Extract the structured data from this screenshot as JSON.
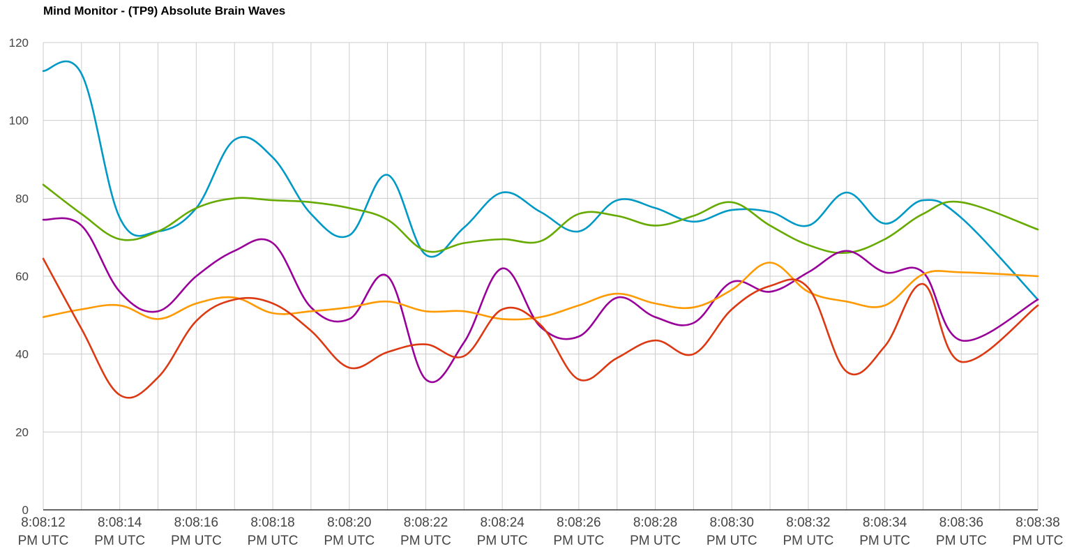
{
  "title": "Mind Monitor - (TP9) Absolute Brain Waves",
  "chart_data": {
    "type": "line",
    "title": "Mind Monitor - (TP9) Absolute Brain Waves",
    "xlabel": "",
    "ylabel": "",
    "ylim": [
      0,
      120
    ],
    "yticks": [
      0,
      20,
      40,
      60,
      80,
      100,
      120
    ],
    "xlim": [
      0,
      26
    ],
    "x_unit": "seconds after 8:08:12 PM UTC",
    "xtick_labels": [
      {
        "line1": "8:08:12",
        "line2": "PM UTC"
      },
      {
        "line1": "8:08:14",
        "line2": "PM UTC"
      },
      {
        "line1": "8:08:16",
        "line2": "PM UTC"
      },
      {
        "line1": "8:08:18",
        "line2": "PM UTC"
      },
      {
        "line1": "8:08:20",
        "line2": "PM UTC"
      },
      {
        "line1": "8:08:22",
        "line2": "PM UTC"
      },
      {
        "line1": "8:08:24",
        "line2": "PM UTC"
      },
      {
        "line1": "8:08:26",
        "line2": "PM UTC"
      },
      {
        "line1": "8:08:28",
        "line2": "PM UTC"
      },
      {
        "line1": "8:08:30",
        "line2": "PM UTC"
      },
      {
        "line1": "8:08:32",
        "line2": "PM UTC"
      },
      {
        "line1": "8:08:34",
        "line2": "PM UTC"
      },
      {
        "line1": "8:08:36",
        "line2": "PM UTC"
      },
      {
        "line1": "8:08:38",
        "line2": "PM UTC"
      }
    ],
    "grid": true,
    "legend": "none",
    "x": [
      "8:08:12 PM UTC",
      "8:08:13 PM UTC",
      "8:08:14 PM UTC",
      "8:08:15 PM UTC",
      "8:08:16 PM UTC",
      "8:08:17 PM UTC",
      "8:08:18 PM UTC",
      "8:08:19 PM UTC",
      "8:08:20 PM UTC",
      "8:08:21 PM UTC",
      "8:08:22 PM UTC",
      "8:08:23 PM UTC",
      "8:08:24 PM UTC",
      "8:08:25 PM UTC",
      "8:08:26 PM UTC",
      "8:08:27 PM UTC",
      "8:08:28 PM UTC",
      "8:08:29 PM UTC",
      "8:08:30 PM UTC",
      "8:08:31 PM UTC",
      "8:08:32 PM UTC",
      "8:08:33 PM UTC",
      "8:08:34 PM UTC",
      "8:08:35 PM UTC",
      "8:08:36 PM UTC",
      "8:08:38 PM UTC"
    ],
    "series": [
      {
        "color": "#0099c6",
        "values": [
          112.7,
          112.0,
          75.0,
          71.5,
          77.5,
          95.0,
          90.5,
          76.0,
          70.5,
          86.0,
          65.5,
          72.5,
          81.5,
          76.5,
          71.5,
          79.5,
          77.5,
          74.0,
          77.0,
          76.5,
          73.0,
          81.5,
          73.5,
          79.5,
          75.0,
          54.0
        ]
      },
      {
        "color": "#66aa00",
        "values": [
          83.5,
          76.0,
          69.5,
          71.5,
          77.5,
          80.0,
          79.5,
          79.0,
          77.5,
          74.5,
          66.5,
          68.5,
          69.5,
          69.0,
          76.0,
          75.5,
          73.0,
          75.5,
          79.0,
          73.0,
          68.0,
          66.0,
          69.5,
          76.0,
          79.0,
          72.0
        ]
      },
      {
        "color": "#990099",
        "values": [
          74.5,
          73.0,
          56.0,
          51.0,
          60.0,
          66.5,
          68.5,
          52.0,
          49.0,
          60.0,
          33.5,
          43.0,
          62.0,
          47.0,
          44.5,
          54.5,
          49.5,
          48.0,
          58.5,
          56.0,
          61.0,
          66.5,
          61.0,
          61.0,
          43.5,
          54.0
        ]
      },
      {
        "color": "#ff9900",
        "values": [
          49.5,
          51.5,
          52.5,
          49.0,
          53.0,
          54.5,
          50.5,
          51.0,
          52.0,
          53.5,
          51.0,
          51.0,
          49.0,
          49.5,
          52.5,
          55.5,
          53.0,
          52.0,
          56.5,
          63.5,
          56.0,
          53.5,
          52.5,
          60.5,
          61.0,
          60.0
        ]
      },
      {
        "color": "#dc3912",
        "values": [
          64.5,
          46.5,
          29.5,
          34.0,
          48.5,
          54.0,
          53.0,
          46.0,
          36.5,
          40.5,
          42.5,
          39.5,
          51.5,
          47.5,
          33.5,
          39.0,
          43.5,
          40.0,
          51.5,
          57.5,
          57.0,
          35.5,
          42.0,
          58.0,
          38.0,
          52.5
        ]
      }
    ]
  }
}
